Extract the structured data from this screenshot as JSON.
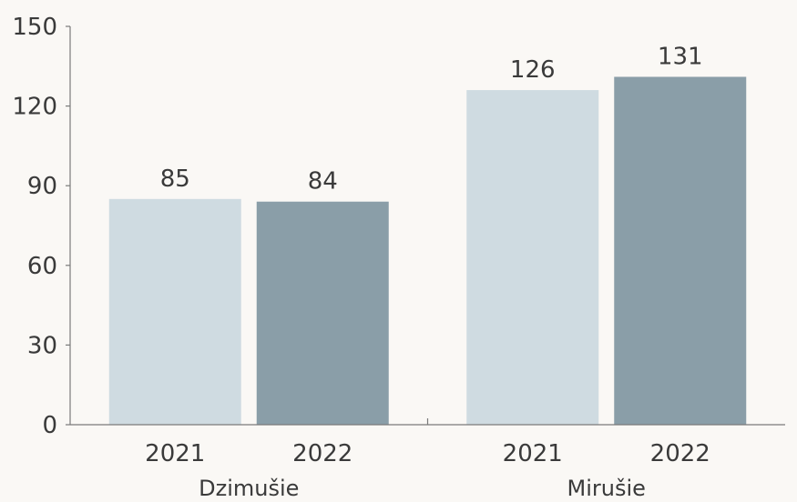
{
  "chart_data": {
    "type": "bar",
    "title": "",
    "xlabel": "",
    "ylabel": "",
    "ylim": [
      0,
      150
    ],
    "yticks": [
      0,
      30,
      60,
      90,
      120,
      150
    ],
    "grid": false,
    "legend": "none",
    "groups": [
      {
        "label": "Dzimušie",
        "bars": [
          {
            "category": "2021",
            "value": 85,
            "color": "#cfdbe1"
          },
          {
            "category": "2022",
            "value": 84,
            "color": "#8a9ea8"
          }
        ]
      },
      {
        "label": "Mirušie",
        "bars": [
          {
            "category": "2021",
            "value": 126,
            "color": "#cfdbe1"
          },
          {
            "category": "2022",
            "value": 131,
            "color": "#8a9ea8"
          }
        ]
      }
    ],
    "colors": {
      "axis": "#7a7a7a",
      "text": "#3a3a3a",
      "background": "#faf8f5"
    }
  }
}
